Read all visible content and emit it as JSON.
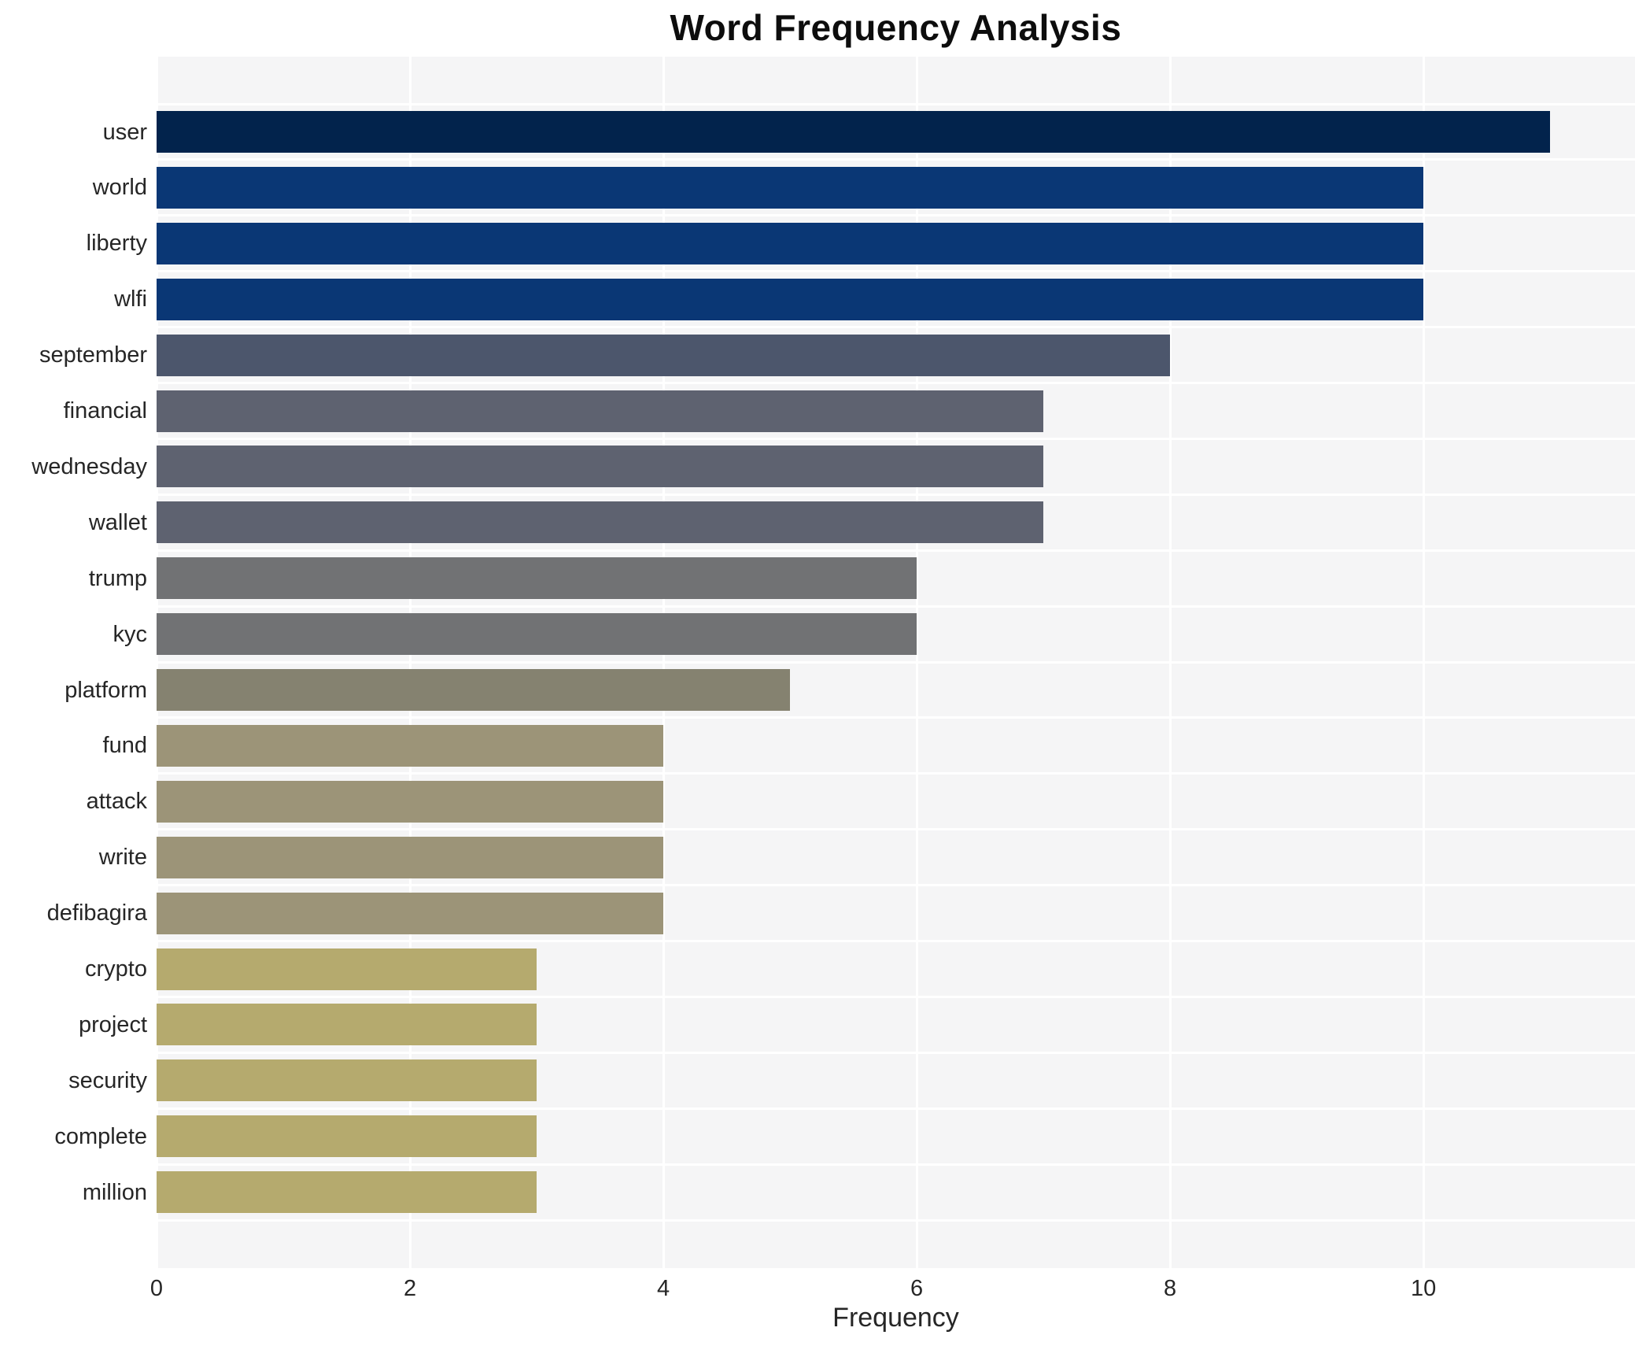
{
  "chart_data": {
    "type": "bar",
    "orientation": "horizontal",
    "title": "Word Frequency Analysis",
    "xlabel": "Frequency",
    "ylabel": "",
    "xlim": [
      0,
      11.67
    ],
    "xticks": [
      0,
      2,
      4,
      6,
      8,
      10
    ],
    "grid": true,
    "legend": "none",
    "categories": [
      "user",
      "world",
      "liberty",
      "wlfi",
      "september",
      "financial",
      "wednesday",
      "wallet",
      "trump",
      "kyc",
      "platform",
      "fund",
      "attack",
      "write",
      "defibagira",
      "crypto",
      "project",
      "security",
      "complete",
      "million"
    ],
    "values": [
      11,
      10,
      10,
      10,
      8,
      7,
      7,
      7,
      6,
      6,
      5,
      4,
      4,
      4,
      4,
      3,
      3,
      3,
      3,
      3
    ],
    "bar_colors": [
      "#02234c",
      "#0a3775",
      "#0a3775",
      "#0a3775",
      "#4c566c",
      "#5e6270",
      "#5e6270",
      "#5e6270",
      "#717274",
      "#717274",
      "#858270",
      "#9c9478",
      "#9c9478",
      "#9c9478",
      "#9c9478",
      "#b5aa6e",
      "#b5aa6e",
      "#b5aa6e",
      "#b5aa6e",
      "#b5aa6e"
    ],
    "plot_background": "#f5f5f6",
    "grid_color": "#ffffff",
    "text_color": "#262626"
  }
}
